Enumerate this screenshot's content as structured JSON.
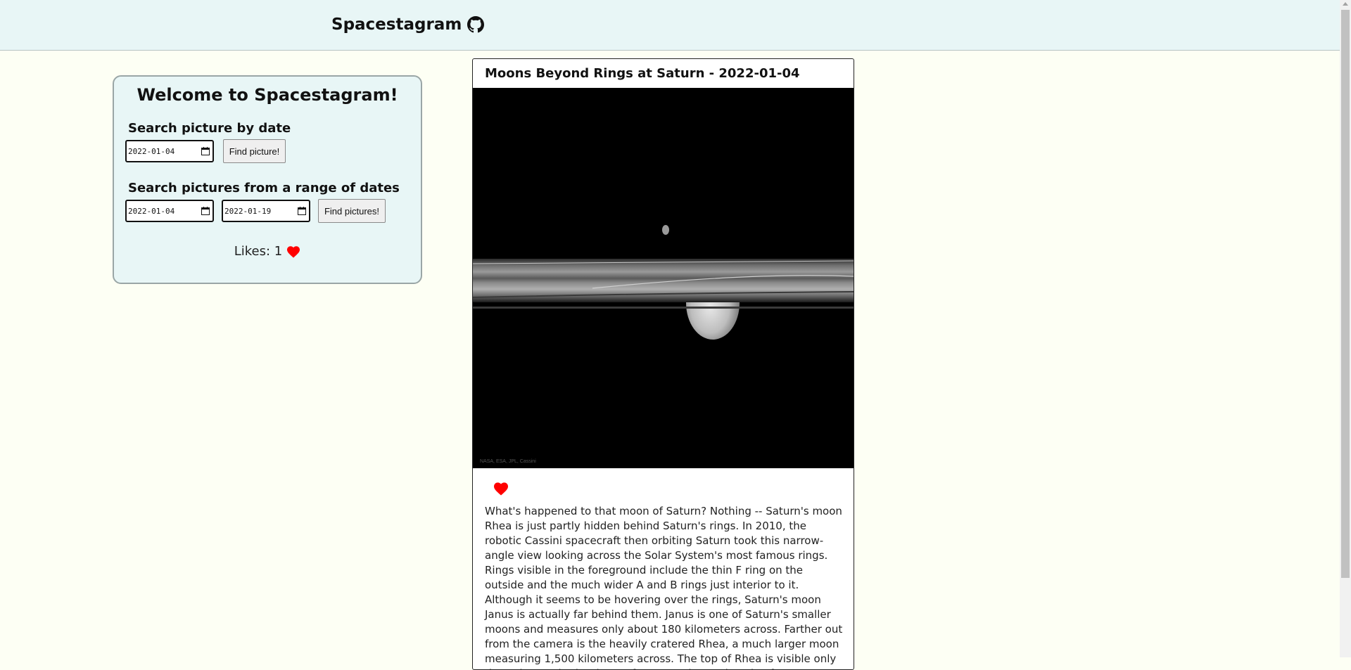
{
  "header": {
    "title": "Spacestagram",
    "github_icon": "github-icon"
  },
  "search_panel": {
    "title": "Welcome to Spacestagram!",
    "single_date": {
      "label": "Search picture by date",
      "value": "2022-01-04",
      "button_label": "Find picture!"
    },
    "range": {
      "label": "Search pictures from a range of dates",
      "start_value": "2022-01-04",
      "end_value": "2022-01-19",
      "button_label": "Find pictures!"
    },
    "likes": {
      "label": "Likes: 1",
      "icon": "heart-icon"
    }
  },
  "post": {
    "title": "Moons Beyond Rings at Saturn - 2022-01-04",
    "image_credit": "NASA, ESA, JPL, Cassini",
    "liked": true,
    "like_icon": "heart-icon",
    "explanation": "What's happened to that moon of Saturn? Nothing -- Saturn's moon Rhea is just partly hidden behind Saturn's rings. In 2010, the robotic Cassini spacecraft then orbiting Saturn took this narrow-angle view looking across the Solar System's most famous rings. Rings visible in the foreground include the thin F ring on the outside and the much wider A and B rings just interior to it. Although it seems to be hovering over the rings, Saturn's moon Janus is actually far behind them. Janus is one of Saturn's smaller moons and measures only about 180 kilometers across. Farther out from the camera is the heavily cratered Rhea, a much larger moon measuring 1,500 kilometers across. The top of Rhea is visible only through gaps in the rings. After more than a decade of"
  },
  "colors": {
    "header_bg": "#e8f6f6",
    "page_bg": "#fdfff4",
    "heart": "#ff0000"
  }
}
